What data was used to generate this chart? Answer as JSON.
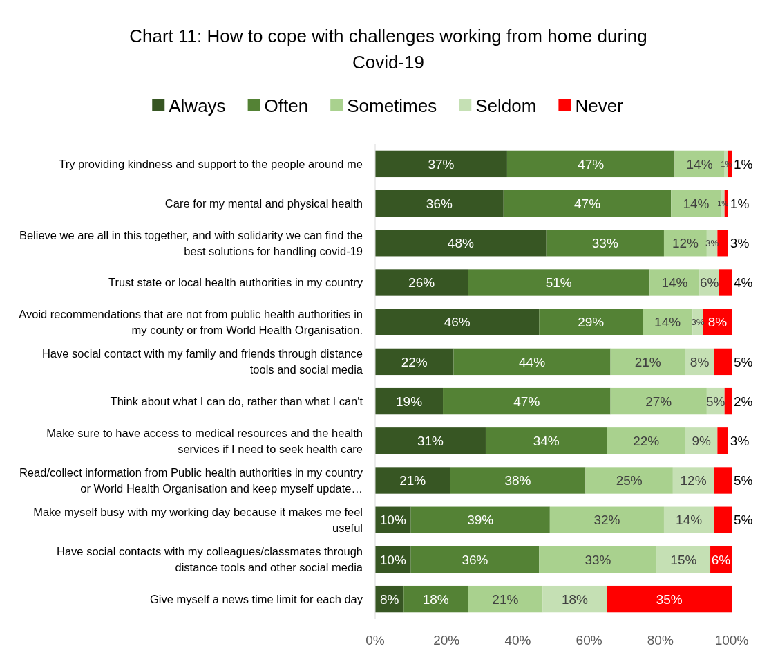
{
  "chart_data": {
    "type": "bar",
    "orientation": "horizontal",
    "stacked": true,
    "title": "Chart 11: How to cope with challenges working from home during Covid-19",
    "categories": [
      "Try providing kindness and support to the people around me",
      "Care for my mental and physical health",
      "Believe we are all in this together, and with solidarity we can find the best solutions for handling covid-19",
      "Trust state or local health authorities in my country",
      "Avoid recommendations that are not from public health authorities in my county or from World Health Organisation.",
      "Have social contact with my family and friends through distance tools and social media",
      "Think about what I can do, rather than what I can't",
      "Make sure to have access to medical resources and the health services if I need to seek health care",
      "Read/collect information from Public health authorities in my country or World Health Organisation and keep myself update…",
      "Make myself busy with my working day because it makes me feel useful",
      "Have social contacts with my colleagues/classmates through distance tools and other social media",
      "Give myself a news time limit for each day"
    ],
    "series": [
      {
        "name": "Always",
        "color": "#375623",
        "values": [
          37,
          36,
          48,
          26,
          46,
          22,
          19,
          31,
          21,
          10,
          10,
          8
        ],
        "value_labels": [
          "37%",
          "36%",
          "48%",
          "26%",
          "46%",
          "22%",
          "19%",
          "31%",
          "21%",
          "10%",
          "10%",
          "8%"
        ]
      },
      {
        "name": "Often",
        "color": "#548235",
        "values": [
          47,
          47,
          33,
          51,
          29,
          44,
          47,
          34,
          38,
          39,
          36,
          18
        ],
        "value_labels": [
          "47%",
          "47%",
          "33%",
          "51%",
          "29%",
          "44%",
          "47%",
          "34%",
          "38%",
          "39%",
          "36%",
          "18%"
        ]
      },
      {
        "name": "Sometimes",
        "color": "#a9d18e",
        "values": [
          14,
          14,
          12,
          14,
          14,
          21,
          27,
          22,
          24.5,
          32,
          33,
          21
        ],
        "value_labels": [
          "14%",
          "14%",
          "12%",
          "14%",
          "14%",
          "21%",
          "27%",
          "22%",
          "25%",
          "32%",
          "33%",
          "21%"
        ]
      },
      {
        "name": "Seldom",
        "color": "#c5e0b4",
        "values": [
          1,
          1,
          3,
          5.5,
          3,
          8,
          5,
          9,
          11.5,
          14,
          15,
          18
        ],
        "value_labels": [
          "1%",
          "1%",
          "3%",
          "6%",
          "3%",
          "8%",
          "5%",
          "9%",
          "12%",
          "14%",
          "15%",
          "18%"
        ]
      },
      {
        "name": "Never",
        "color": "#ff0000",
        "values": [
          1,
          1,
          3,
          3.5,
          8,
          5,
          2,
          3,
          5,
          5,
          6,
          35
        ],
        "value_labels": [
          "1%",
          "1%",
          "3%",
          "4%",
          "8%",
          "5%",
          "2%",
          "3%",
          "5%",
          "5%",
          "6%",
          "35%"
        ]
      }
    ],
    "xlim": [
      0,
      100
    ],
    "xticks": [
      {
        "value": 0,
        "label": "0%"
      },
      {
        "value": 20,
        "label": "20%"
      },
      {
        "value": 40,
        "label": "40%"
      },
      {
        "value": 60,
        "label": "60%"
      },
      {
        "value": 80,
        "label": "80%"
      },
      {
        "value": 100,
        "label": "100%"
      }
    ],
    "legend": "top",
    "grid": false
  }
}
